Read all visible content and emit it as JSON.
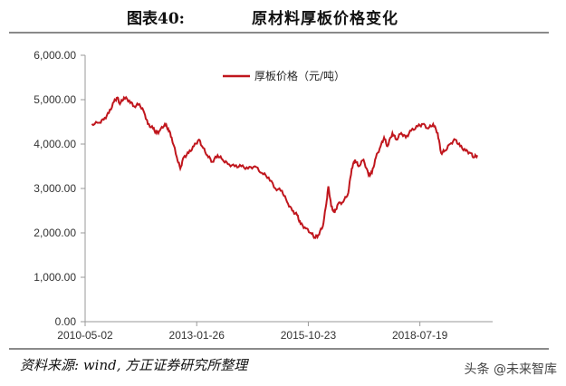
{
  "figure": {
    "number": "图表40:",
    "title": "原材料厚板价格变化",
    "source": "资料来源: wind, 方正证券研究所整理",
    "watermark": "头条 @未来智库"
  },
  "colors": {
    "line": "#c0161d",
    "axis": "#999999",
    "text": "#333333"
  },
  "chart_data": {
    "type": "line",
    "title": "",
    "xlabel": "",
    "ylabel": "",
    "ylim": [
      0,
      6000
    ],
    "yticks": [
      0,
      1000,
      2000,
      3000,
      4000,
      5000,
      6000
    ],
    "ytick_labels": [
      "0.00",
      "1,000.00",
      "2,000.00",
      "3,000.00",
      "4,000.00",
      "5,000.00",
      "6,000.00"
    ],
    "xlim": [
      "2010-05-02",
      "2020-05-01"
    ],
    "xticks": [
      "2010-05-02",
      "2013-01-26",
      "2015-10-23",
      "2018-07-19"
    ],
    "legend": {
      "position": "top-left",
      "label": "厚板价格（元/吨）"
    },
    "grid": false,
    "series": [
      {
        "name": "厚板价格（元/吨）",
        "color": "#c0161d",
        "points": [
          [
            "2010-07-01",
            4450
          ],
          [
            "2010-09-01",
            4480
          ],
          [
            "2010-10-15",
            4550
          ],
          [
            "2010-12-01",
            4700
          ],
          [
            "2011-01-15",
            4950
          ],
          [
            "2011-02-15",
            5050
          ],
          [
            "2011-03-10",
            4900
          ],
          [
            "2011-04-15",
            5050
          ],
          [
            "2011-06-01",
            4980
          ],
          [
            "2011-07-15",
            4850
          ],
          [
            "2011-09-01",
            4900
          ],
          [
            "2011-10-15",
            4700
          ],
          [
            "2011-11-15",
            4450
          ],
          [
            "2012-01-01",
            4350
          ],
          [
            "2012-02-01",
            4250
          ],
          [
            "2012-03-01",
            4300
          ],
          [
            "2012-04-15",
            4450
          ],
          [
            "2012-05-15",
            4350
          ],
          [
            "2012-06-15",
            4150
          ],
          [
            "2012-08-01",
            3700
          ],
          [
            "2012-09-01",
            3450
          ],
          [
            "2012-10-01",
            3700
          ],
          [
            "2012-11-15",
            3800
          ],
          [
            "2013-01-01",
            3950
          ],
          [
            "2013-02-15",
            4100
          ],
          [
            "2013-03-15",
            3950
          ],
          [
            "2013-05-01",
            3750
          ],
          [
            "2013-06-15",
            3600
          ],
          [
            "2013-08-01",
            3750
          ],
          [
            "2013-09-15",
            3650
          ],
          [
            "2013-11-01",
            3550
          ],
          [
            "2014-01-01",
            3500
          ],
          [
            "2014-03-01",
            3500
          ],
          [
            "2014-05-01",
            3450
          ],
          [
            "2014-07-01",
            3500
          ],
          [
            "2014-09-01",
            3350
          ],
          [
            "2014-11-01",
            3250
          ],
          [
            "2015-01-01",
            3000
          ],
          [
            "2015-03-01",
            2950
          ],
          [
            "2015-04-15",
            2700
          ],
          [
            "2015-06-01",
            2500
          ],
          [
            "2015-07-15",
            2400
          ],
          [
            "2015-08-15",
            2200
          ],
          [
            "2015-10-01",
            2100
          ],
          [
            "2015-11-15",
            2000
          ],
          [
            "2015-12-20",
            1900
          ],
          [
            "2016-01-20",
            1950
          ],
          [
            "2016-03-01",
            2150
          ],
          [
            "2016-04-01",
            2650
          ],
          [
            "2016-04-20",
            3050
          ],
          [
            "2016-05-15",
            2600
          ],
          [
            "2016-06-15",
            2450
          ],
          [
            "2016-07-15",
            2650
          ],
          [
            "2016-09-01",
            2700
          ],
          [
            "2016-10-15",
            2900
          ],
          [
            "2016-11-15",
            3450
          ],
          [
            "2016-12-15",
            3650
          ],
          [
            "2017-01-15",
            3500
          ],
          [
            "2017-03-01",
            3650
          ],
          [
            "2017-04-15",
            3300
          ],
          [
            "2017-05-15",
            3350
          ],
          [
            "2017-06-20",
            3700
          ],
          [
            "2017-08-01",
            3950
          ],
          [
            "2017-09-01",
            4150
          ],
          [
            "2017-10-01",
            3950
          ],
          [
            "2017-11-15",
            4250
          ],
          [
            "2017-12-20",
            4100
          ],
          [
            "2018-02-01",
            4250
          ],
          [
            "2018-03-15",
            4150
          ],
          [
            "2018-05-01",
            4300
          ],
          [
            "2018-07-01",
            4400
          ],
          [
            "2018-08-15",
            4450
          ],
          [
            "2018-10-01",
            4350
          ],
          [
            "2018-11-15",
            4450
          ],
          [
            "2018-12-25",
            4250
          ],
          [
            "2019-01-25",
            3800
          ],
          [
            "2019-03-01",
            3850
          ],
          [
            "2019-04-15",
            4000
          ],
          [
            "2019-06-01",
            4100
          ],
          [
            "2019-07-15",
            3950
          ],
          [
            "2019-09-01",
            3850
          ],
          [
            "2019-10-15",
            3800
          ],
          [
            "2019-11-15",
            3700
          ],
          [
            "2019-12-15",
            3750
          ]
        ]
      }
    ]
  }
}
